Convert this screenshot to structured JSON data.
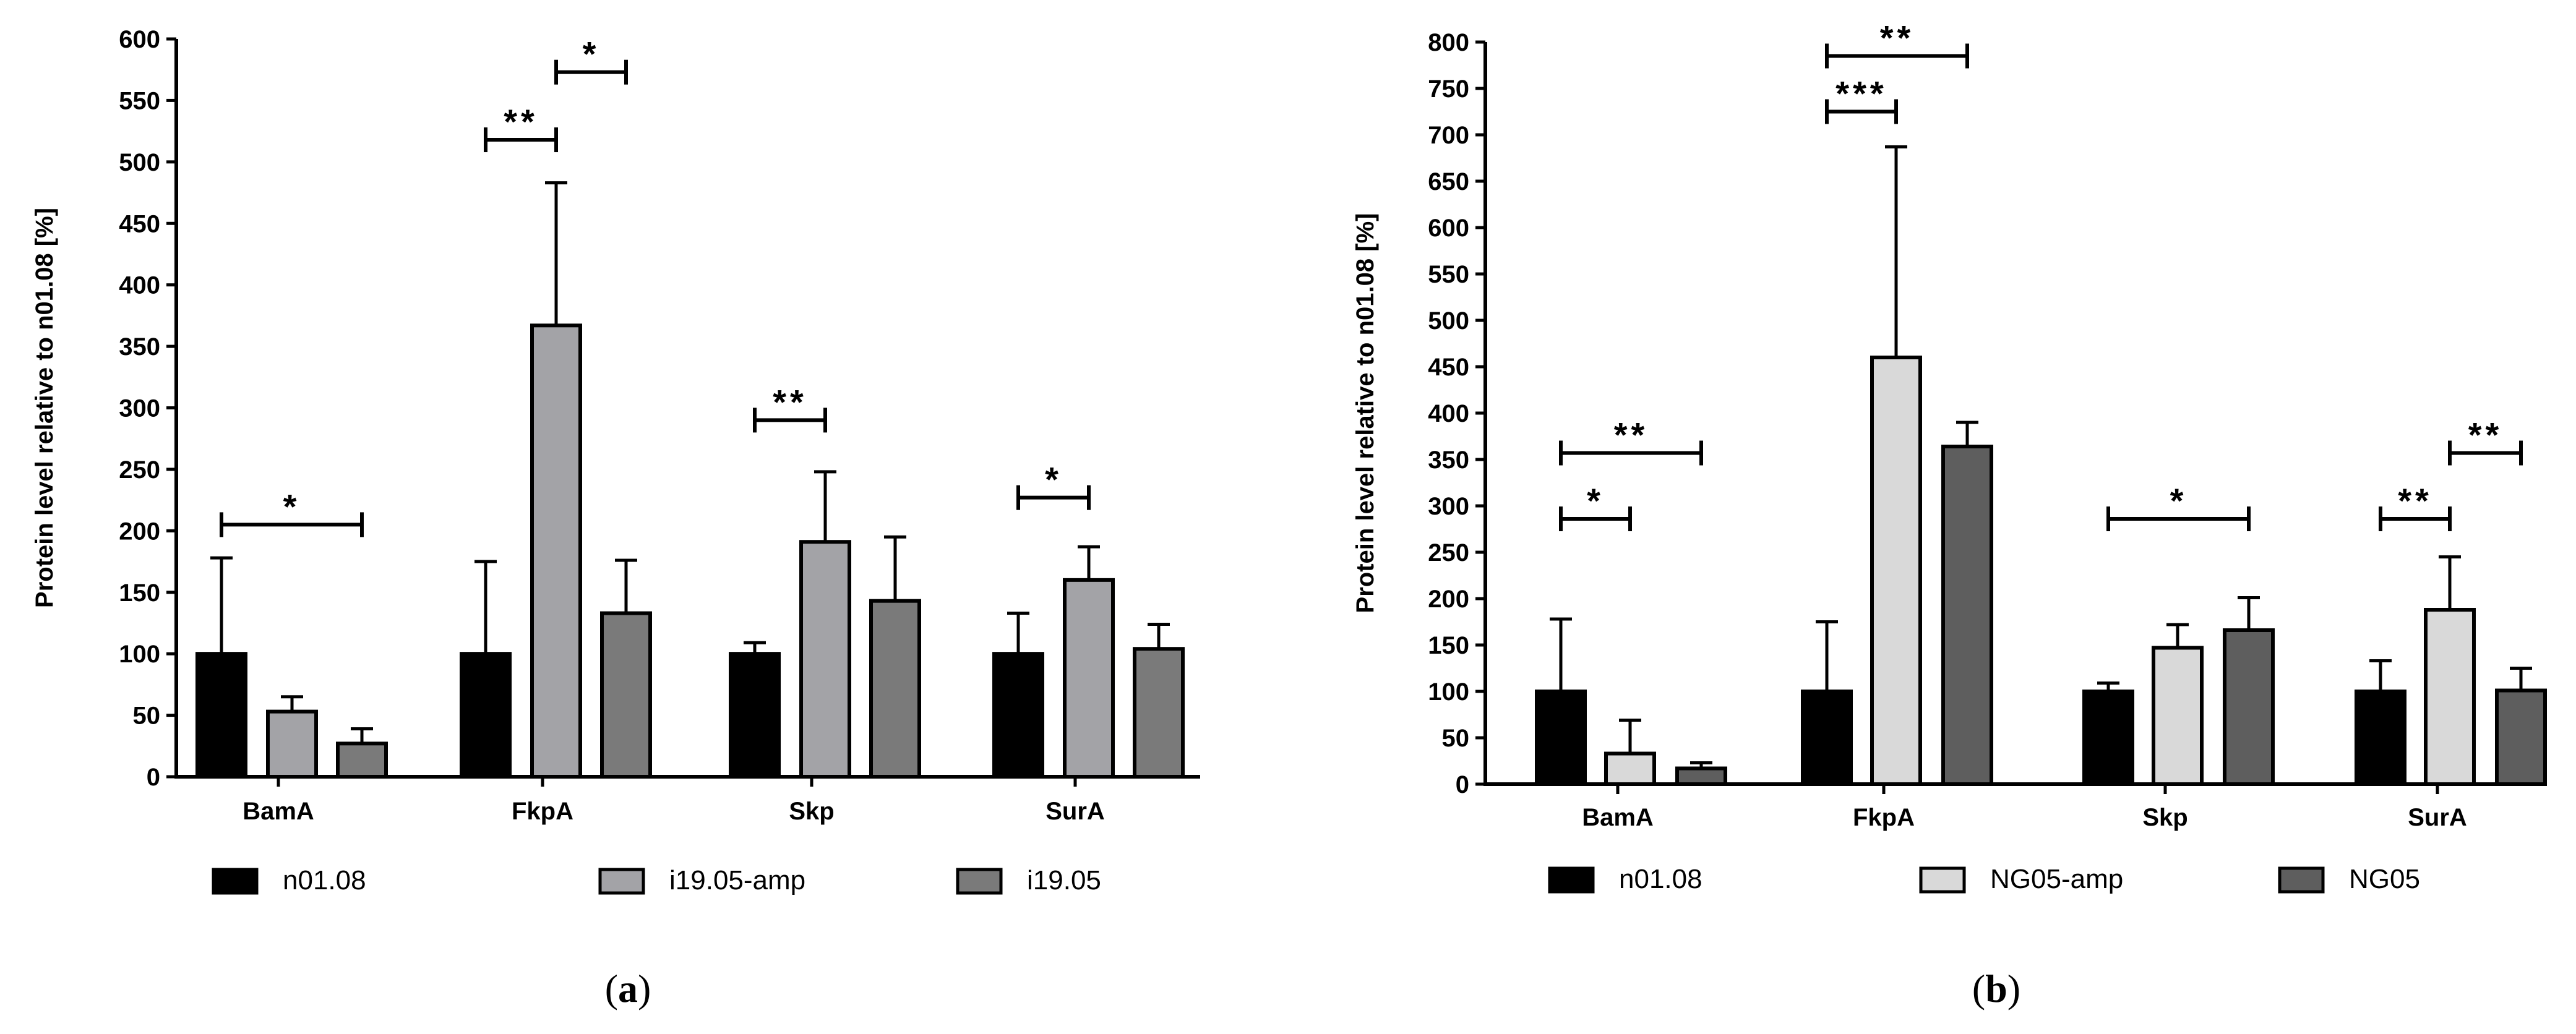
{
  "colors": {
    "n01.08": "#000000",
    "i19.05-amp": "#a3a3a7",
    "i19.05": "#7a7a7a",
    "NG05-amp": "#d9d9d9",
    "NG05": "#5e5e5e",
    "axis": "#000000"
  },
  "chart_data": [
    {
      "type": "bar",
      "panel_label": "a",
      "ylabel": "Protein level relative to n01.08 [%]",
      "xlabel": "",
      "ylim": [
        0,
        600
      ],
      "ytick_step": 50,
      "yticks": [
        "0",
        "50",
        "100",
        "150",
        "200",
        "250",
        "300",
        "350",
        "400",
        "450",
        "500",
        "550",
        "600"
      ],
      "categories": [
        "BamA",
        "FkpA",
        "Skp",
        "SurA"
      ],
      "series": [
        {
          "name": "n01.08",
          "values": [
            100,
            100,
            100,
            100
          ],
          "errors": [
            78,
            75,
            9,
            33
          ]
        },
        {
          "name": "i19.05-amp",
          "values": [
            53,
            367,
            191,
            160
          ],
          "errors": [
            12,
            116,
            57,
            27
          ]
        },
        {
          "name": "i19.05",
          "values": [
            27,
            133,
            143,
            104
          ],
          "errors": [
            12,
            43,
            52,
            20
          ]
        }
      ],
      "legend": [
        "n01.08",
        "i19.05-amp",
        "i19.05"
      ],
      "significance": [
        {
          "category": "BamA",
          "from": 0,
          "to": 2,
          "y": 205,
          "label": "*"
        },
        {
          "category": "FkpA",
          "from": 0,
          "to": 1,
          "y": 518,
          "label": "**"
        },
        {
          "category": "FkpA",
          "from": 1,
          "to": 2,
          "y": 573,
          "label": "*"
        },
        {
          "category": "Skp",
          "from": 0,
          "to": 1,
          "y": 290,
          "label": "**"
        },
        {
          "category": "SurA",
          "from": 0,
          "to": 1,
          "y": 227,
          "label": "*"
        }
      ]
    },
    {
      "type": "bar",
      "panel_label": "b",
      "ylabel": "Protein level relative to n01.08 [%]",
      "xlabel": "",
      "ylim": [
        0,
        800
      ],
      "ytick_step": 50,
      "yticks": [
        "0",
        "50",
        "100",
        "150",
        "200",
        "250",
        "300",
        "350",
        "400",
        "450",
        "500",
        "550",
        "600",
        "650",
        "700",
        "750",
        "800"
      ],
      "categories": [
        "BamA",
        "FkpA",
        "Skp",
        "SurA"
      ],
      "series": [
        {
          "name": "n01.08",
          "values": [
            100,
            100,
            100,
            100
          ],
          "errors": [
            78,
            75,
            9,
            33
          ]
        },
        {
          "name": "NG05-amp",
          "values": [
            33,
            460,
            147,
            188
          ],
          "errors": [
            36,
            227,
            25,
            57
          ]
        },
        {
          "name": "NG05",
          "values": [
            17,
            364,
            166,
            101
          ],
          "errors": [
            6,
            26,
            35,
            24
          ]
        }
      ],
      "legend": [
        "n01.08",
        "NG05-amp",
        "NG05"
      ],
      "significance": [
        {
          "category": "BamA",
          "from": 0,
          "to": 1,
          "y": 286,
          "label": "*"
        },
        {
          "category": "BamA",
          "from": 0,
          "to": 2,
          "y": 357,
          "label": "**"
        },
        {
          "category": "FkpA",
          "from": 0,
          "to": 1,
          "y": 725,
          "label": "***"
        },
        {
          "category": "FkpA",
          "from": 0,
          "to": 2,
          "y": 785,
          "label": "**"
        },
        {
          "category": "Skp",
          "from": 0,
          "to": 2,
          "y": 286,
          "label": "*"
        },
        {
          "category": "SurA",
          "from": 0,
          "to": 1,
          "y": 286,
          "label": "**"
        },
        {
          "category": "SurA",
          "from": 1,
          "to": 2,
          "y": 357,
          "label": "**"
        }
      ]
    }
  ]
}
